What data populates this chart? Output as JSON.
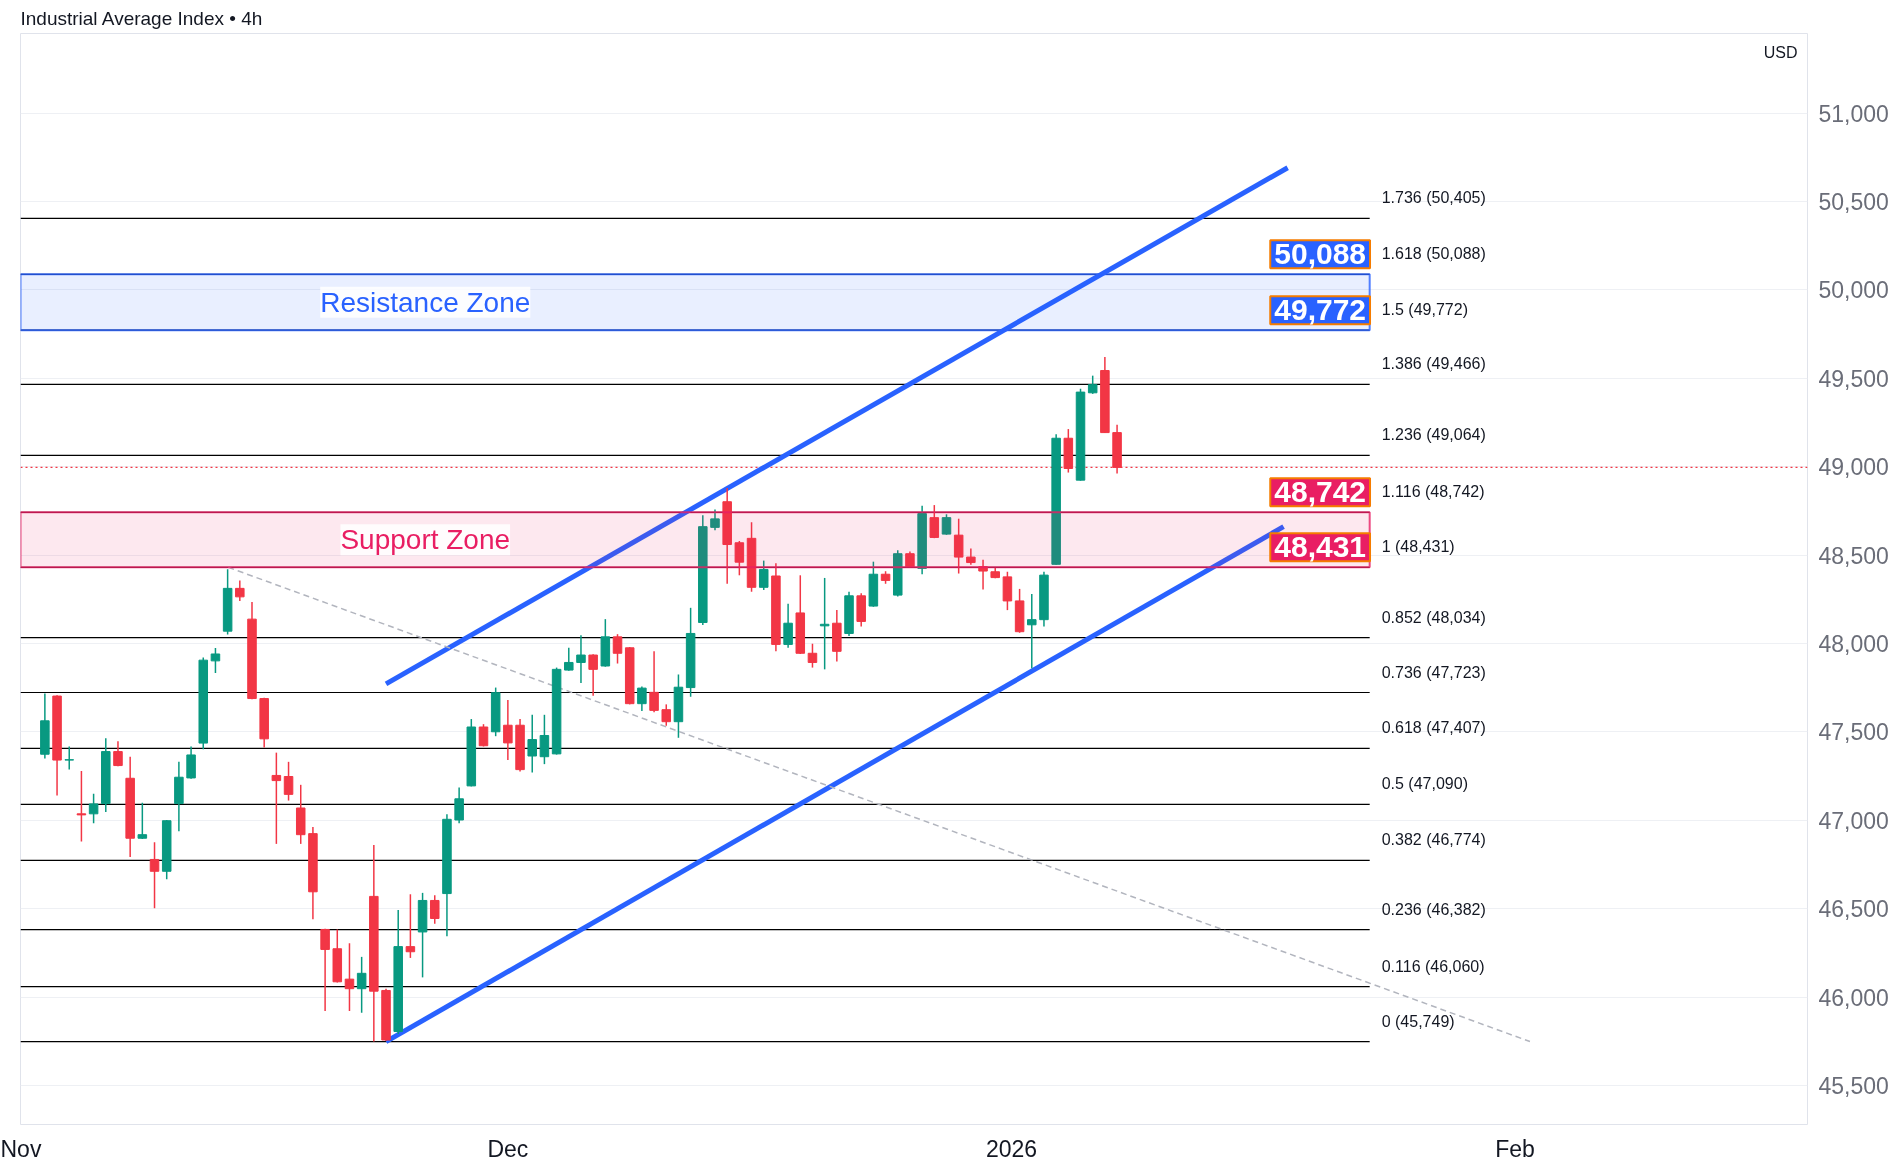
{
  "chart_data": {
    "type": "candlestick",
    "title": "Industrial Average Index • 4h",
    "colors": [
      "#089981",
      "#f23645",
      "#089981",
      "#f23645",
      "#089981",
      "#089981",
      "#f23645",
      "#f23645",
      "#089981",
      "#f23645",
      "#089981",
      "#089981",
      "#089981",
      "#089981",
      "#089981",
      "#089981",
      "#f23645",
      "#f23645",
      "#f23645",
      "#f23645",
      "#f23645",
      "#f23645",
      "#f23645",
      "#f23645",
      "#f23645",
      "#f23645",
      "#089981",
      "#f23645",
      "#f23645",
      "#089981",
      "#f23645",
      "#089981",
      "#f23645",
      "#089981",
      "#089981",
      "#089981",
      "#f23645",
      "#089981",
      "#f23645",
      "#f23645",
      "#089981",
      "#089981",
      "#089981",
      "#089981",
      "#089981",
      "#f23645",
      "#089981",
      "#f23645",
      "#f23645",
      "#089981",
      "#f23645",
      "#f23645",
      "#089981",
      "#089981",
      "#089981",
      "#089981",
      "#f23645",
      "#f23645",
      "#f23645",
      "#089981",
      "#f23645",
      "#089981",
      "#f23645",
      "#f23645",
      "#089981",
      "#f23645",
      "#089981",
      "#f23645",
      "#089981",
      "#f23645",
      "#089981",
      "#f23645",
      "#089981",
      "#f23645",
      "#089981",
      "#f23645",
      "#f23645",
      "#f23645",
      "#f23645",
      "#f23645",
      "#f23645",
      "#089981",
      "#089981",
      "#089981",
      "#f23645",
      "#089981",
      "#089981",
      "#f23645",
      "#f23645"
    ],
    "x": [
      "2025-11-02T12:00",
      "2025-11-03T06:00",
      "2025-11-04T00:00",
      "2025-11-04T18:00",
      "2025-11-05T12:00",
      "2025-11-06T06:00",
      "2025-11-07T00:00",
      "2025-11-07T18:00",
      "2025-11-08T12:00",
      "2025-11-09T06:00",
      "2025-11-10T00:00",
      "2025-11-10T18:00",
      "2025-11-11T12:00",
      "2025-11-12T06:00",
      "2025-11-13T00:00",
      "2025-11-13T18:00",
      "2025-11-14T12:00",
      "2025-11-15T06:00",
      "2025-11-16T00:00",
      "2025-11-16T18:00",
      "2025-11-17T12:00",
      "2025-11-18T06:00",
      "2025-11-19T00:00",
      "2025-11-19T18:00",
      "2025-11-20T12:00",
      "2025-11-21T06:00",
      "2025-11-22T00:00",
      "2025-11-22T18:00",
      "2025-11-23T12:00",
      "2025-11-24T06:00",
      "2025-11-25T00:00",
      "2025-11-25T18:00",
      "2025-11-26T12:00",
      "2025-11-27T06:00",
      "2025-11-28T00:00",
      "2025-11-28T18:00",
      "2025-11-29T12:00",
      "2025-11-30T06:00",
      "2025-12-01T00:00",
      "2025-12-01T18:00",
      "2025-12-02T12:00",
      "2025-12-03T06:00",
      "2025-12-04T00:00",
      "2025-12-04T18:00",
      "2025-12-05T12:00",
      "2025-12-06T06:00",
      "2025-12-07T00:00",
      "2025-12-07T18:00",
      "2025-12-08T12:00",
      "2025-12-09T06:00",
      "2025-12-10T00:00",
      "2025-12-10T18:00",
      "2025-12-11T12:00",
      "2025-12-12T06:00",
      "2025-12-13T00:00",
      "2025-12-13T18:00",
      "2025-12-14T12:00",
      "2025-12-15T06:00",
      "2025-12-16T00:00",
      "2025-12-16T18:00",
      "2025-12-17T12:00",
      "2025-12-18T06:00",
      "2025-12-19T00:00",
      "2025-12-19T18:00",
      "2025-12-20T12:00",
      "2025-12-21T06:00",
      "2025-12-22T00:00",
      "2025-12-22T18:00",
      "2025-12-23T12:00",
      "2025-12-24T06:00",
      "2025-12-25T00:00",
      "2025-12-25T18:00",
      "2025-12-26T12:00",
      "2025-12-27T06:00",
      "2025-12-28T00:00",
      "2025-12-28T18:00",
      "2025-12-29T12:00",
      "2025-12-30T06:00",
      "2025-12-31T00:00",
      "2025-12-31T18:00",
      "2026-01-01T12:00",
      "2026-01-02T06:00",
      "2026-01-03T00:00",
      "2026-01-03T18:00",
      "2026-01-04T12:00",
      "2026-01-05T06:00",
      "2026-01-06T00:00",
      "2026-01-06T18:00",
      "2026-01-07T12:00"
    ],
    "ohlc": [
      [
        47374,
        47718,
        47350,
        47563
      ],
      [
        47703,
        47708,
        47141,
        47341
      ],
      [
        47343,
        47418,
        47288,
        47341
      ],
      [
        47037,
        47279,
        46880,
        47031
      ],
      [
        47037,
        47151,
        46983,
        47093
      ],
      [
        47095,
        47465,
        47048,
        47389
      ],
      [
        47389,
        47447,
        47306,
        47310
      ],
      [
        47238,
        47360,
        46793,
        46899
      ],
      [
        46899,
        47099,
        46895,
        46919
      ],
      [
        46779,
        46876,
        46503,
        46712
      ],
      [
        46712,
        47002,
        46667,
        46998
      ],
      [
        47095,
        47331,
        46938,
        47244
      ],
      [
        47240,
        47418,
        47236,
        47370
      ],
      [
        47437,
        47921,
        47402,
        47906
      ],
      [
        47902,
        47975,
        47834,
        47941
      ],
      [
        48070,
        48420,
        48051,
        48312
      ],
      [
        48312,
        48357,
        48240,
        48264
      ],
      [
        48138,
        48235,
        47685,
        47689
      ],
      [
        47689,
        47693,
        47412,
        47461
      ],
      [
        47254,
        47383,
        46867,
        47225
      ],
      [
        47248,
        47331,
        47112,
        47147
      ],
      [
        47070,
        47201,
        46867,
        46919
      ],
      [
        46925,
        46963,
        46441,
        46596
      ],
      [
        46383,
        46387,
        45922,
        46270
      ],
      [
        46274,
        46383,
        46083,
        46087
      ],
      [
        46102,
        46305,
        45922,
        46048
      ],
      [
        46048,
        46228,
        45912,
        46135
      ],
      [
        46570,
        46861,
        45750,
        46034
      ],
      [
        46038,
        46048,
        45754,
        45758
      ],
      [
        45806,
        46493,
        45792,
        46286
      ],
      [
        46286,
        46582,
        46222,
        46257
      ],
      [
        46369,
        46590,
        46112,
        46547
      ],
      [
        46547,
        46576,
        46416,
        46445
      ],
      [
        46586,
        47035,
        46344,
        47006
      ],
      [
        47002,
        47186,
        46983,
        47122
      ],
      [
        47195,
        47573,
        47192,
        47528
      ],
      [
        47528,
        47544,
        47418,
        47422
      ],
      [
        47501,
        47751,
        47476,
        47722
      ],
      [
        47538,
        47680,
        47341,
        47438
      ],
      [
        47538,
        47573,
        47277,
        47287
      ],
      [
        47364,
        47597,
        47270,
        47457
      ],
      [
        47360,
        47597,
        47318,
        47480
      ],
      [
        47376,
        47864,
        47372,
        47854
      ],
      [
        47850,
        47976,
        47846,
        47893
      ],
      [
        47893,
        48047,
        47777,
        47935
      ],
      [
        47935,
        47939,
        47705,
        47854
      ],
      [
        47873,
        48138,
        47869,
        48038
      ],
      [
        48038,
        48053,
        47887,
        47945
      ],
      [
        47976,
        47980,
        47656,
        47660
      ],
      [
        47660,
        47757,
        47618,
        47748
      ],
      [
        47724,
        47956,
        47612,
        47622
      ],
      [
        47626,
        47656,
        47535,
        47558
      ],
      [
        47558,
        47825,
        47467,
        47753
      ],
      [
        47751,
        48202,
        47699,
        48057
      ],
      [
        48119,
        48725,
        48105,
        48661
      ],
      [
        48657,
        48758,
        48641,
        48705
      ],
      [
        48802,
        48879,
        48338,
        48560
      ],
      [
        48570,
        48580,
        48386,
        48460
      ],
      [
        48595,
        48686,
        48293,
        48318
      ],
      [
        48318,
        48469,
        48303,
        48419
      ],
      [
        48382,
        48454,
        47956,
        47995
      ],
      [
        47995,
        48225,
        47976,
        48115
      ],
      [
        48173,
        48386,
        47941,
        47945
      ],
      [
        47945,
        47999,
        47864,
        47893
      ],
      [
        48100,
        48371,
        47854,
        48109
      ],
      [
        48115,
        48189,
        47898,
        47956
      ],
      [
        48057,
        48293,
        48042,
        48270
      ],
      [
        48270,
        48285,
        48096,
        48125
      ],
      [
        48212,
        48463,
        48208,
        48392
      ],
      [
        48392,
        48409,
        48338,
        48357
      ],
      [
        48274,
        48527,
        48266,
        48508
      ],
      [
        48508,
        48521,
        48431,
        48434
      ],
      [
        48425,
        48779,
        48392,
        48735
      ],
      [
        48712,
        48783,
        48596,
        48600
      ],
      [
        48619,
        48731,
        48615,
        48712
      ],
      [
        48613,
        48706,
        48396,
        48489
      ],
      [
        48489,
        48537,
        48445,
        48458
      ],
      [
        48435,
        48474,
        48305,
        48410
      ],
      [
        48406,
        48429,
        48369,
        48373
      ],
      [
        48377,
        48406,
        48189,
        48241
      ],
      [
        48241,
        48309,
        48061,
        48067
      ],
      [
        48106,
        48280,
        47860,
        48135
      ],
      [
        48135,
        48406,
        48096,
        48387
      ],
      [
        48448,
        49184,
        48445,
        49161
      ],
      [
        49161,
        49213,
        48967,
        48990
      ],
      [
        48924,
        49441,
        48921,
        49422
      ],
      [
        49418,
        49515,
        49412,
        49464
      ],
      [
        49544,
        49621,
        49190,
        49193
      ],
      [
        49193,
        49238,
        48961,
        48996
      ]
    ],
    "series": [
      {
        "type": "line",
        "color": "#2962ff",
        "x": [
          "2025-11-23T12:00",
          "2026-01-18T00:00"
        ],
        "values": [
          47772,
          50691
        ]
      },
      {
        "type": "line",
        "color": "#2962ff",
        "x": [
          "2025-11-23T12:00",
          "2026-01-17T18:00"
        ],
        "values": [
          45749,
          48661
        ]
      },
      {
        "type": "line",
        "color": "#b2b5be",
        "line_style": "dashed",
        "x": [
          "2025-11-13T19:00",
          "2026-02-01T22:00"
        ],
        "values": [
          48431,
          45749
        ]
      }
    ],
    "xlim": [
      "2025-11-01T00:00",
      "2026-02-19T00:00"
    ],
    "xticks": [
      {
        "value": "2025-11-01",
        "label": "Nov"
      },
      {
        "value": "2025-12-01",
        "label": "Dec"
      },
      {
        "value": "2026-01-01",
        "label": "2026"
      },
      {
        "value": "2026-02-01",
        "label": "Feb"
      }
    ],
    "ylim": [
      45280,
      51450
    ],
    "yticks": [
      {
        "value": 45500,
        "label": "45,500"
      },
      {
        "value": 46000,
        "label": "46,000"
      },
      {
        "value": 46500,
        "label": "46,500"
      },
      {
        "value": 47000,
        "label": "47,000"
      },
      {
        "value": 47500,
        "label": "47,500"
      },
      {
        "value": 48000,
        "label": "48,000"
      },
      {
        "value": 48500,
        "label": "48,500"
      },
      {
        "value": 49000,
        "label": "49,000"
      },
      {
        "value": 49500,
        "label": "49,500"
      },
      {
        "value": 50000,
        "label": "50,000"
      },
      {
        "value": 50500,
        "label": "50,500"
      },
      {
        "value": 51000,
        "label": "51,000"
      }
    ],
    "grid": "y",
    "bands": [
      {
        "axis": "y",
        "from": 49772,
        "to": 50088,
        "label": "Resistance Zone",
        "color": "#2962ff"
      },
      {
        "axis": "y",
        "from": 48431,
        "to": 48742,
        "label": "Support Zone",
        "color": "#e91e63"
      }
    ],
    "ref_lines": [
      {
        "axis": "y",
        "value": 50405,
        "label": "1.736 (50,405)",
        "color": "#000000"
      },
      {
        "axis": "y",
        "value": 50088,
        "label": "1.618 (50,088)",
        "color": "#000000"
      },
      {
        "axis": "y",
        "value": 49772,
        "label": "1.5 (49,772)",
        "color": "#000000"
      },
      {
        "axis": "y",
        "value": 49466,
        "label": "1.386 (49,466)",
        "color": "#000000"
      },
      {
        "axis": "y",
        "value": 49064,
        "label": "1.236 (49,064)",
        "color": "#000000"
      },
      {
        "axis": "y",
        "value": 48742,
        "label": "1.116 (48,742)",
        "color": "#000000"
      },
      {
        "axis": "y",
        "value": 48431,
        "label": "1 (48,431)",
        "color": "#000000"
      },
      {
        "axis": "y",
        "value": 48034,
        "label": "0.852 (48,034)",
        "color": "#000000"
      },
      {
        "axis": "y",
        "value": 47723,
        "label": "0.736 (47,723)",
        "color": "#000000"
      },
      {
        "axis": "y",
        "value": 47407,
        "label": "0.618 (47,407)",
        "color": "#000000"
      },
      {
        "axis": "y",
        "value": 47090,
        "label": "0.5 (47,090)",
        "color": "#000000"
      },
      {
        "axis": "y",
        "value": 46774,
        "label": "0.382 (46,774)",
        "color": "#000000"
      },
      {
        "axis": "y",
        "value": 46382,
        "label": "0.236 (46,382)",
        "color": "#000000"
      },
      {
        "axis": "y",
        "value": 46060,
        "label": "0.116 (46,060)",
        "color": "#000000"
      },
      {
        "axis": "y",
        "value": 45749,
        "label": "0 (45,749)",
        "color": "#000000"
      },
      {
        "axis": "y",
        "value": 48996,
        "label": null,
        "color": "#f23645",
        "line_style": "dotted"
      }
    ],
    "annotations": [
      {
        "text": "50,088",
        "x": "2026-01-20T00:00",
        "y": 50088
      },
      {
        "text": "49,772",
        "x": "2026-01-20T00:00",
        "y": 49772
      },
      {
        "text": "48,742",
        "x": "2026-01-20T00:00",
        "y": 48742
      },
      {
        "text": "48,431",
        "x": "2026-01-20T00:00",
        "y": 48431
      },
      "USD"
    ]
  }
}
